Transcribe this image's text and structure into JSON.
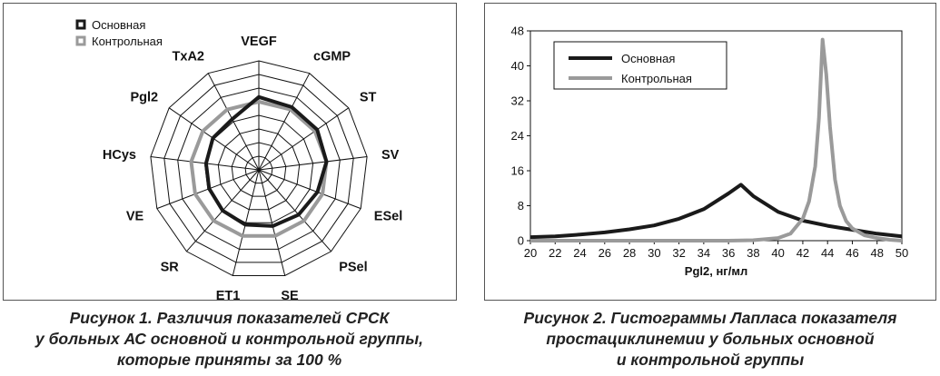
{
  "figure1": {
    "chart_data": {
      "type": "radar",
      "categories": [
        "VEGF",
        "cGMP",
        "ST",
        "SV",
        "ESel",
        "PSel",
        "SE",
        "ET1",
        "SR",
        "VE",
        "HCys",
        "Pgl2",
        "TxA2"
      ],
      "rlim": [
        0,
        160
      ],
      "rings": [
        20,
        40,
        60,
        80,
        100,
        120,
        140,
        160
      ],
      "series": [
        {
          "name": "Основная",
          "color": "#1a1a1a",
          "values": [
            107,
            104,
            104,
            100,
            92,
            88,
            85,
            83,
            80,
            78,
            78,
            82,
            84
          ]
        },
        {
          "name": "Контрольная",
          "color": "#9a9a9a",
          "values": [
            100,
            100,
            100,
            100,
            100,
            100,
            100,
            100,
            100,
            100,
            100,
            100,
            100
          ]
        }
      ],
      "legend": "top-left"
    },
    "caption_lines": [
      "Рисунок 1. Различия показателей СРСК",
      "у больных АС основной и контрольной группы,",
      "которые приняты за 100 %"
    ]
  },
  "figure2": {
    "chart_data": {
      "type": "line",
      "xlabel": "Pgl2, нг/мл",
      "ylabel": "",
      "xlim": [
        20,
        50
      ],
      "ylim": [
        0,
        48
      ],
      "xticks": [
        20,
        22,
        24,
        26,
        28,
        30,
        32,
        34,
        36,
        38,
        40,
        42,
        44,
        46,
        48,
        50
      ],
      "yticks": [
        0,
        8,
        16,
        24,
        32,
        40,
        48
      ],
      "series": [
        {
          "name": "Основная",
          "color": "#1a1a1a",
          "x": [
            20,
            22,
            24,
            26,
            28,
            30,
            32,
            34,
            36,
            37,
            38,
            40,
            42,
            44,
            46,
            48,
            50
          ],
          "y": [
            0.8,
            1.0,
            1.4,
            1.9,
            2.6,
            3.5,
            5.0,
            7.2,
            10.8,
            12.8,
            10.2,
            6.6,
            4.6,
            3.4,
            2.5,
            1.6,
            1.0
          ]
        },
        {
          "name": "Контрольная",
          "color": "#9a9a9a",
          "x": [
            20,
            24,
            28,
            32,
            36,
            38,
            40,
            41,
            42,
            42.5,
            43,
            43.3,
            43.6,
            43.9,
            44.2,
            44.6,
            45,
            45.5,
            46,
            47,
            48,
            49,
            50
          ],
          "y": [
            0,
            0,
            0,
            0,
            0,
            0.1,
            0.6,
            1.6,
            5,
            9,
            17,
            28,
            46,
            38,
            26,
            14,
            8,
            4.5,
            2.8,
            1.2,
            0.6,
            0.2,
            0
          ]
        }
      ],
      "legend": "top-left"
    },
    "caption_lines": [
      "Рисунок 2. Гистограммы Лапласа показателя",
      "простациклинемии у больных основной",
      "и контрольной группы"
    ]
  }
}
